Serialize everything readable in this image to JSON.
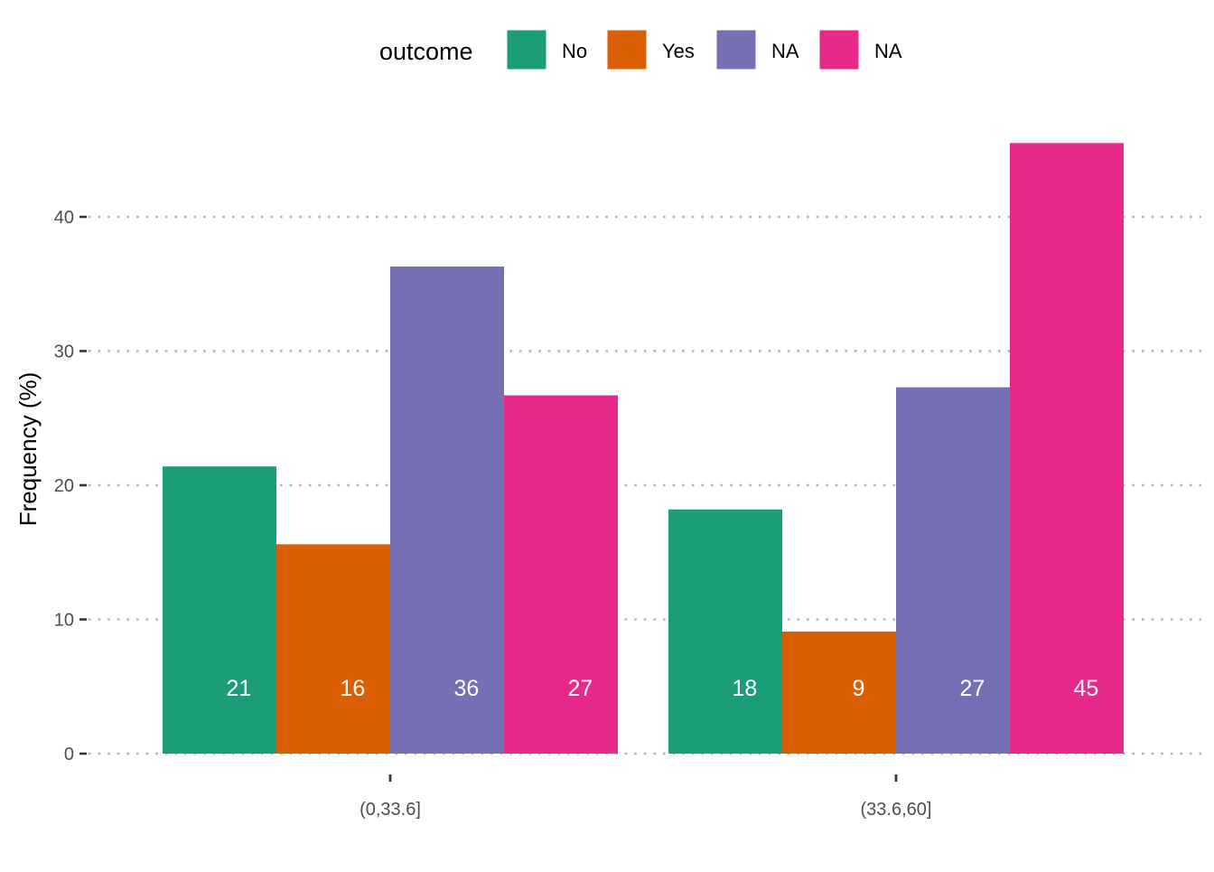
{
  "chart_data": {
    "type": "bar",
    "xlabel": "",
    "ylabel": "Frequency (%)",
    "ylim": [
      0,
      45.5
    ],
    "yticks": [
      0,
      10,
      20,
      30,
      40
    ],
    "categories": [
      "(0,33.6]",
      "(33.6,60]"
    ],
    "legend": {
      "title": "outcome",
      "position": "top"
    },
    "grid": "major-y dotted",
    "series": [
      {
        "name": "No",
        "color": "#1B9E77",
        "values": [
          21.4,
          18.2
        ],
        "labels": [
          "21",
          "18"
        ]
      },
      {
        "name": "Yes",
        "color": "#D95F02",
        "values": [
          15.6,
          9.1
        ],
        "labels": [
          "16",
          "9"
        ]
      },
      {
        "name": "NA",
        "color": "#7570B3",
        "values": [
          36.3,
          27.3
        ],
        "labels": [
          "36",
          "27"
        ]
      },
      {
        "name": "NA",
        "color": "#E7298A",
        "values": [
          26.7,
          45.5
        ],
        "labels": [
          "27",
          "45"
        ]
      }
    ]
  }
}
